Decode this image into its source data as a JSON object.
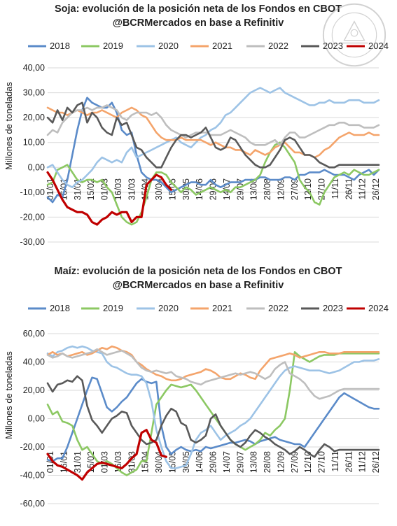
{
  "chart_data": [
    {
      "type": "line",
      "title": "Soja: evolución de la posición neta de los Fondos en CBOT",
      "subtitle": "@BCRMercados en base a Refinitiv",
      "ylabel": "Millones de toneladas",
      "ylim": [
        -30,
        40
      ],
      "yticks": [
        -30,
        -20,
        -10,
        0,
        10,
        20,
        30,
        40
      ],
      "ytick_labels": [
        "-30,00",
        "-20,00",
        "-10,00",
        "0,00",
        "10,00",
        "20,00",
        "30,00",
        "40,00"
      ],
      "x_tick_labels": [
        "01/01",
        "16/01",
        "31/01",
        "15/02",
        "01/03",
        "16/03",
        "31/03",
        "15/04",
        "30/04",
        "15/05",
        "30/05",
        "14/06",
        "29/06",
        "14/07",
        "29/07",
        "13/08",
        "28/08",
        "12/09",
        "27/09",
        "12/10",
        "27/10",
        "11/11",
        "26/11",
        "11/12",
        "26/12"
      ],
      "grid": true,
      "legend_position": "top",
      "series": [
        {
          "name": "2018",
          "color": "#5B8BC9",
          "values": [
            -12,
            -14,
            -11,
            -12,
            -5,
            5,
            15,
            23,
            28,
            26,
            25,
            24,
            24,
            26,
            22,
            15,
            13,
            14,
            5,
            -2,
            -4,
            -5,
            -5,
            -6,
            -8,
            -10,
            -9,
            -8,
            -7,
            -6,
            -6,
            -7,
            -7,
            -5,
            -7,
            -8,
            -7,
            -6,
            -6,
            -6,
            -5,
            -5,
            -5,
            -4,
            -4,
            -5,
            -5,
            -5,
            -4,
            -4,
            -5,
            -3,
            -3,
            -2,
            -2,
            -2,
            -1,
            -2,
            -3,
            -3,
            -3,
            -4,
            -5,
            -3,
            -2,
            -1,
            -3,
            -1
          ]
        },
        {
          "name": "2019",
          "color": "#8CC863",
          "values": [
            -7,
            -6,
            -1,
            0,
            1,
            -2,
            -5,
            -6,
            -5,
            -5,
            -6,
            -5,
            -8,
            -10,
            -15,
            -20,
            -22,
            -23,
            -22,
            -18,
            -12,
            -5,
            -2,
            -2,
            -3,
            -6,
            -8,
            -10,
            -8,
            -9,
            -11,
            -10,
            -9,
            -8,
            -9,
            -10,
            -9,
            -10,
            -8,
            -8,
            -7,
            -6,
            -5,
            -3,
            2,
            6,
            9,
            10,
            8,
            5,
            2,
            -5,
            -8,
            -10,
            -14,
            -15,
            -10,
            -7,
            -4,
            -3,
            -2,
            -3,
            -1,
            -2,
            -3,
            -3,
            -2,
            -1
          ]
        },
        {
          "name": "2020",
          "color": "#9DC3E6",
          "values": [
            0,
            1,
            -2,
            -5,
            -7,
            -8,
            -6,
            -5,
            -3,
            -1,
            2,
            4,
            3,
            2,
            3,
            2,
            6,
            8,
            4,
            5,
            6,
            7,
            8,
            9,
            10,
            11,
            12,
            10,
            9,
            8,
            10,
            12,
            13,
            15,
            16,
            18,
            21,
            22,
            24,
            26,
            28,
            30,
            31,
            32,
            31,
            30,
            31,
            32,
            30,
            29,
            28,
            27,
            26,
            25,
            25,
            26,
            26,
            27,
            26,
            26,
            26,
            27,
            27,
            27,
            26,
            26,
            26,
            27
          ]
        },
        {
          "name": "2021",
          "color": "#F4A46B",
          "values": [
            24,
            23,
            22,
            22,
            21,
            22,
            23,
            22,
            21,
            22,
            22,
            23,
            22,
            21,
            20,
            22,
            23,
            24,
            23,
            21,
            20,
            17,
            14,
            12,
            11,
            11,
            11,
            12,
            11,
            11,
            11,
            11,
            10,
            9,
            10,
            9,
            8,
            8,
            7,
            7,
            6,
            5,
            7,
            6,
            5,
            6,
            8,
            9,
            10,
            8,
            6,
            6,
            5,
            5,
            4,
            5,
            7,
            8,
            10,
            12,
            13,
            14,
            13,
            13,
            13,
            14,
            13,
            13
          ]
        },
        {
          "name": "2022",
          "color": "#BEBEBE",
          "values": [
            13,
            15,
            14,
            18,
            20,
            22,
            23,
            23,
            24,
            23,
            24,
            24,
            25,
            24,
            23,
            20,
            19,
            21,
            22,
            22,
            22,
            21,
            22,
            20,
            17,
            15,
            14,
            13,
            12,
            13,
            14,
            14,
            14,
            13,
            13,
            13,
            14,
            15,
            14,
            13,
            12,
            10,
            9,
            9,
            9,
            10,
            11,
            9,
            12,
            14,
            14,
            12,
            12,
            13,
            14,
            15,
            16,
            17,
            17,
            18,
            18,
            17,
            17,
            17,
            16,
            16,
            16,
            17
          ]
        },
        {
          "name": "2023",
          "color": "#595959",
          "values": [
            20,
            18,
            23,
            19,
            24,
            22,
            25,
            26,
            18,
            22,
            20,
            16,
            14,
            13,
            20,
            17,
            18,
            13,
            8,
            7,
            4,
            2,
            0,
            0,
            4,
            8,
            11,
            13,
            13,
            12,
            13,
            14,
            16,
            12,
            8,
            7,
            8,
            12,
            11,
            8,
            5,
            3,
            1,
            0,
            0,
            1,
            4,
            7,
            11,
            12,
            11,
            8,
            5,
            5,
            4,
            2,
            1,
            0,
            0,
            1,
            1,
            1,
            1,
            1,
            1,
            1,
            1,
            1
          ]
        },
        {
          "name": "2024",
          "color": "#C00000",
          "values": [
            -2,
            -5,
            -9,
            -13,
            -16,
            -17,
            -18,
            -18,
            -19,
            -22,
            -23,
            -21,
            -20,
            -18,
            -19,
            -18,
            -18,
            -22,
            -20,
            -20,
            -7,
            -5,
            -3,
            -4,
            -7,
            -9
          ]
        }
      ]
    },
    {
      "type": "line",
      "title": "Maíz: evolución de la posición neta de los Fondos en CBOT",
      "subtitle": "@BCRMercados en base a Refinitiv",
      "ylabel": "Millones de toneladas",
      "ylim": [
        -60,
        60
      ],
      "yticks": [
        -60,
        -40,
        -20,
        0,
        20,
        40,
        60
      ],
      "ytick_labels": [
        "-60,00",
        "-40,00",
        "-20,00",
        "0,00",
        "20,00",
        "40,00",
        "60,00"
      ],
      "x_tick_labels": [
        "01/01",
        "16/01",
        "31/01",
        "15/02",
        "01/03",
        "16/03",
        "31/03",
        "15/04",
        "30/04",
        "15/05",
        "30/05",
        "14/06",
        "29/06",
        "14/07",
        "29/07",
        "13/08",
        "28/08",
        "12/09",
        "27/09",
        "12/10",
        "27/10",
        "11/11",
        "26/11",
        "11/12",
        "26/12"
      ],
      "grid": true,
      "legend_position": "top",
      "series": [
        {
          "name": "2018",
          "color": "#5B8BC9",
          "values": [
            -29,
            -30,
            -28,
            -28,
            -20,
            -10,
            0,
            10,
            20,
            29,
            28,
            18,
            8,
            5,
            8,
            12,
            15,
            20,
            25,
            28,
            26,
            25,
            26,
            -5,
            -20,
            -25,
            -22,
            -20,
            -22,
            -23,
            -22,
            -23,
            -20,
            -21,
            -20,
            -19,
            -18,
            -17,
            -17,
            -16,
            -15,
            -16,
            -18,
            -16,
            -15,
            -14,
            -13,
            -15,
            -16,
            -17,
            -18,
            -18,
            -20,
            -15,
            -10,
            -5,
            0,
            5,
            10,
            15,
            18,
            16,
            14,
            12,
            10,
            8,
            7,
            7
          ]
        },
        {
          "name": "2019",
          "color": "#8CC863",
          "values": [
            10,
            3,
            5,
            -2,
            -3,
            -5,
            -15,
            -22,
            -20,
            -25,
            -30,
            -32,
            -30,
            -32,
            -35,
            -38,
            -40,
            -38,
            -36,
            -30,
            -30,
            -10,
            10,
            15,
            20,
            24,
            23,
            22,
            23,
            24,
            20,
            15,
            10,
            5,
            0,
            -5,
            -10,
            -15,
            -18,
            -20,
            -22,
            -20,
            -18,
            -15,
            -10,
            -12,
            -8,
            -5,
            0,
            20,
            47,
            44,
            42,
            40,
            42,
            44,
            45,
            45,
            45,
            46,
            46,
            46,
            46,
            46,
            46,
            46,
            46,
            46
          ]
        },
        {
          "name": "2020",
          "color": "#9DC3E6",
          "values": [
            46,
            44,
            47,
            48,
            50,
            51,
            50,
            51,
            50,
            48,
            47,
            46,
            40,
            37,
            36,
            34,
            32,
            31,
            31,
            30,
            25,
            12,
            -8,
            -20,
            -30,
            -35,
            -35,
            -34,
            -33,
            -25,
            -15,
            -10,
            -8,
            -5,
            -10,
            -15,
            -12,
            -10,
            -8,
            -5,
            -3,
            0,
            5,
            10,
            15,
            20,
            25,
            30,
            34,
            36,
            37,
            36,
            35,
            34,
            34,
            34,
            33,
            32,
            33,
            34,
            36,
            38,
            40,
            40,
            41,
            41,
            41,
            42
          ]
        },
        {
          "name": "2021",
          "color": "#F4A46B",
          "values": [
            45,
            47,
            45,
            46,
            44,
            45,
            46,
            47,
            45,
            46,
            48,
            50,
            49,
            51,
            50,
            48,
            47,
            45,
            40,
            38,
            35,
            33,
            31,
            30,
            28,
            27,
            27,
            28,
            30,
            31,
            32,
            33,
            35,
            34,
            32,
            29,
            28,
            28,
            30,
            32,
            31,
            29,
            28,
            34,
            38,
            42,
            43,
            44,
            45,
            46,
            45,
            43,
            44,
            45,
            46,
            47,
            47,
            46,
            46,
            46,
            47,
            47,
            47,
            47,
            47,
            47,
            47,
            47
          ]
        },
        {
          "name": "2022",
          "color": "#BEBEBE",
          "values": [
            45,
            43,
            44,
            46,
            44,
            43,
            44,
            45,
            46,
            47,
            49,
            47,
            45,
            46,
            47,
            48,
            46,
            44,
            40,
            36,
            34,
            33,
            34,
            33,
            32,
            33,
            30,
            29,
            28,
            26,
            25,
            24,
            26,
            27,
            28,
            29,
            30,
            31,
            32,
            31,
            32,
            33,
            32,
            30,
            28,
            30,
            35,
            38,
            40,
            32,
            30,
            28,
            25,
            20,
            16,
            14,
            15,
            16,
            18,
            20,
            21,
            21,
            21,
            21,
            21,
            21,
            21,
            21
          ]
        },
        {
          "name": "2023",
          "color": "#595959",
          "values": [
            25,
            19,
            24,
            25,
            27,
            26,
            30,
            27,
            9,
            -1,
            -5,
            -10,
            -5,
            0,
            2,
            5,
            4,
            -5,
            -10,
            -15,
            -18,
            -17,
            -15,
            -5,
            2,
            7,
            5,
            -3,
            -5,
            -15,
            -17,
            -15,
            -12,
            0,
            3,
            -5,
            -10,
            -15,
            -18,
            -20,
            -17,
            -12,
            -8,
            -10,
            -13,
            -15,
            -18,
            -20,
            -22,
            -25,
            -23,
            -20,
            -22,
            -25,
            -27,
            -22,
            -18,
            -20,
            -23,
            -22,
            -22,
            -22,
            -22,
            -22,
            -22,
            -22,
            -22,
            -22
          ]
        },
        {
          "name": "2024",
          "color": "#C00000",
          "values": [
            -25,
            -30,
            -33,
            -34,
            -36,
            -38,
            -40,
            -43,
            -38,
            -35,
            -32,
            -31,
            -32,
            -33,
            -34,
            -35,
            -32,
            -28,
            -25,
            -10,
            -8,
            -15,
            -17,
            -26,
            -27
          ]
        }
      ]
    }
  ]
}
